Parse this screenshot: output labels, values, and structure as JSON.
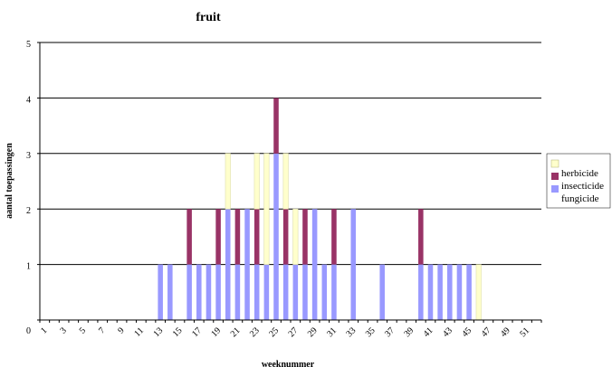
{
  "chart_data": {
    "type": "bar",
    "stacked": true,
    "title": "fruit",
    "xlabel": "weeknummer",
    "ylabel": "aantal toepassingen",
    "ylim": [
      0,
      5
    ],
    "yticks": [
      0,
      1,
      2,
      3,
      4,
      5
    ],
    "grid": "horizontal",
    "legend_position": "right",
    "categories": [
      1,
      2,
      3,
      4,
      5,
      6,
      7,
      8,
      9,
      10,
      11,
      12,
      13,
      14,
      15,
      16,
      17,
      18,
      19,
      20,
      21,
      22,
      23,
      24,
      25,
      26,
      27,
      28,
      29,
      30,
      31,
      32,
      33,
      34,
      35,
      36,
      37,
      38,
      39,
      40,
      41,
      42,
      43,
      44,
      45,
      46,
      47,
      48,
      49,
      50,
      51,
      52
    ],
    "xtick_labels": [
      "1",
      "3",
      "5",
      "7",
      "9",
      "11",
      "13",
      "15",
      "17",
      "19",
      "21",
      "23",
      "25",
      "27",
      "29",
      "31",
      "33",
      "35",
      "37",
      "39",
      "41",
      "43",
      "45",
      "47",
      "49",
      "51"
    ],
    "series": [
      {
        "name": "fungicide",
        "color": "#9999ff",
        "values": [
          0,
          0,
          0,
          0,
          0,
          0,
          0,
          0,
          0,
          0,
          0,
          0,
          1,
          1,
          0,
          1,
          1,
          1,
          1,
          2,
          1,
          2,
          1,
          1,
          3,
          1,
          1,
          1,
          2,
          1,
          1,
          0,
          2,
          0,
          0,
          1,
          0,
          0,
          0,
          1,
          1,
          1,
          1,
          1,
          1,
          0,
          0,
          0,
          0,
          0,
          0,
          0
        ]
      },
      {
        "name": "insecticide",
        "color": "#993366",
        "values": [
          0,
          0,
          0,
          0,
          0,
          0,
          0,
          0,
          0,
          0,
          0,
          0,
          0,
          0,
          0,
          1,
          0,
          0,
          1,
          0,
          1,
          0,
          1,
          0,
          1,
          1,
          0,
          1,
          0,
          0,
          1,
          0,
          0,
          0,
          0,
          0,
          0,
          0,
          0,
          1,
          0,
          0,
          0,
          0,
          0,
          0,
          0,
          0,
          0,
          0,
          0,
          0
        ]
      },
      {
        "name": "herbicide",
        "color": "#ffffcc",
        "values": [
          0,
          0,
          0,
          0,
          0,
          0,
          0,
          0,
          0,
          0,
          0,
          0,
          0,
          0,
          0,
          0,
          0,
          0,
          0,
          1,
          0,
          0,
          1,
          2,
          0,
          1,
          1,
          0,
          0,
          0,
          0,
          0,
          0,
          0,
          0,
          0,
          0,
          0,
          0,
          0,
          0,
          0,
          0,
          0,
          0,
          1,
          0,
          0,
          0,
          0,
          0,
          0
        ]
      }
    ],
    "legend": [
      "herbicide",
      "insecticide",
      "fungicide"
    ]
  }
}
